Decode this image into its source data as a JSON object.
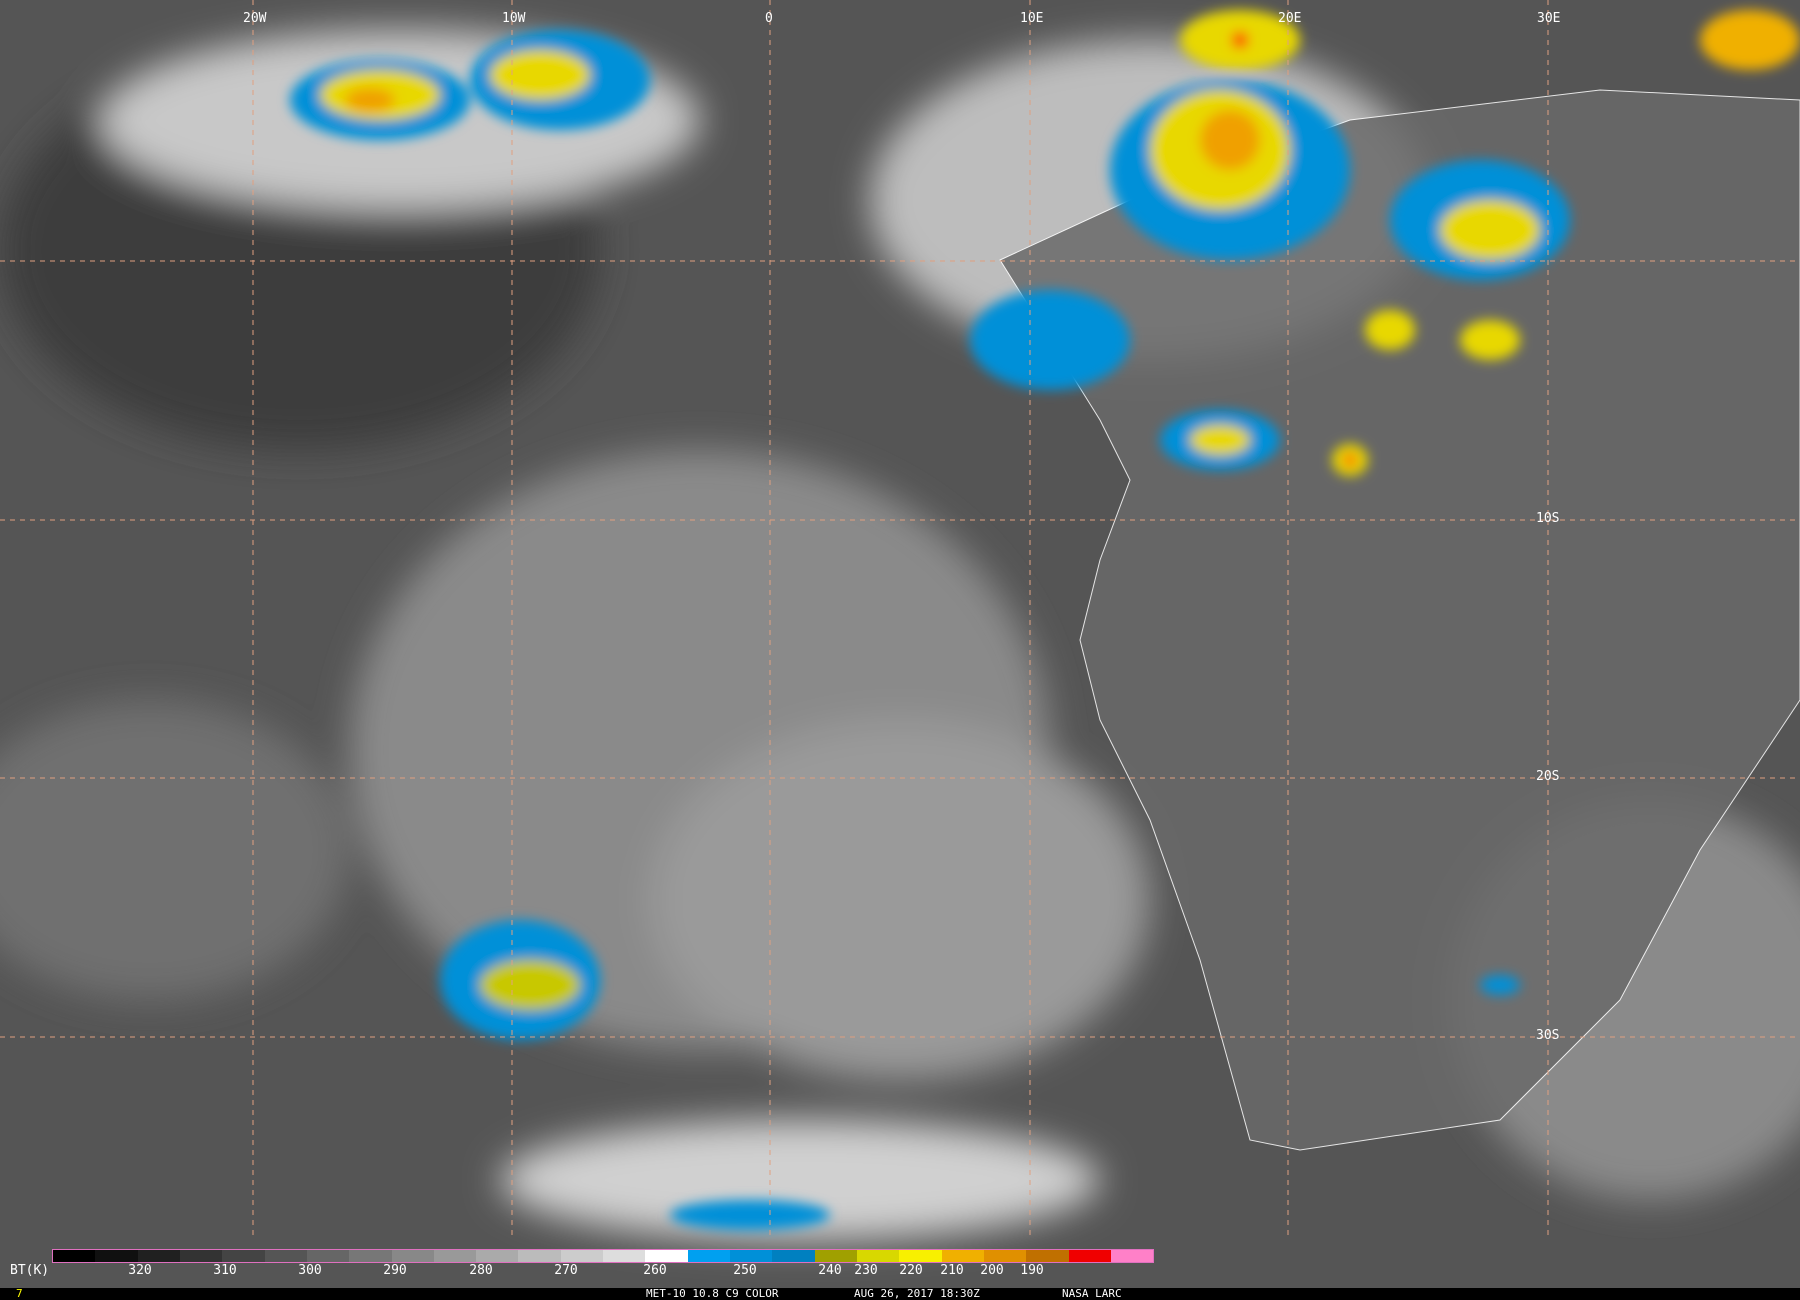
{
  "map": {
    "longitude_labels": [
      "20W",
      "10W",
      "0",
      "10E",
      "20E",
      "30E"
    ],
    "latitude_labels": [
      "10S",
      "20S",
      "30S"
    ]
  },
  "colorbar": {
    "unit_label": "BT(K)",
    "ticks": [
      "320",
      "310",
      "300",
      "290",
      "280",
      "270",
      "260",
      "250",
      "240",
      "230",
      "220",
      "210",
      "200",
      "190"
    ],
    "colors": [
      "#000000",
      "#101010",
      "#202020",
      "#333333",
      "#444444",
      "#555555",
      "#666666",
      "#777777",
      "#888888",
      "#999999",
      "#aaaaaa",
      "#bbbbbb",
      "#cccccc",
      "#dddddd",
      "#ffffff",
      "#00a0f0",
      "#0090d8",
      "#0080c0",
      "#a0a000",
      "#d8d800",
      "#f8f000",
      "#f0b000",
      "#e09000",
      "#c07000",
      "#f00000",
      "#ff80c8"
    ]
  },
  "footer": {
    "frame_number": "7",
    "product": "MET-10 10.8 C9 COLOR",
    "datetime": "AUG 26, 2017 18:30Z",
    "credit": "NASA LARC"
  }
}
